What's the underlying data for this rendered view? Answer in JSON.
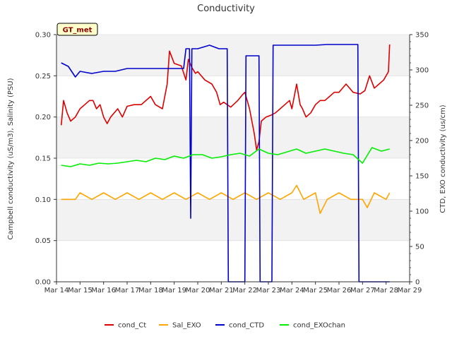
{
  "chart_data": {
    "type": "line",
    "title": "Conductivity",
    "badge": "GT_met",
    "ylabel": "Campbell conductivity (uS/m3), Salinity (PSU)",
    "y2label": "CTD, EXO conductivity (us/cm)",
    "ylim": [
      0,
      0.3
    ],
    "y2lim": [
      0,
      350
    ],
    "xlim": [
      14,
      29
    ],
    "grid": "horizontal bands",
    "legend_placement": "bottom-center",
    "x_ticks": [
      "Mar 14",
      "Mar 15",
      "Mar 16",
      "Mar 17",
      "Mar 18",
      "Mar 19",
      "Mar 20",
      "Mar 21",
      "Mar 22",
      "Mar 23",
      "Mar 24",
      "Mar 25",
      "Mar 26",
      "Mar 27",
      "Mar 28",
      "Mar 29"
    ],
    "y_ticks": [
      "0.00",
      "0.05",
      "0.10",
      "0.15",
      "0.20",
      "0.25",
      "0.30"
    ],
    "y2_ticks": [
      "0",
      "50",
      "100",
      "150",
      "200",
      "250",
      "300",
      "350"
    ],
    "series": [
      {
        "name": "cond_Ct",
        "color": "#dd0000",
        "axis": "left",
        "x": [
          14.2,
          14.3,
          14.45,
          14.6,
          14.8,
          15.0,
          15.2,
          15.4,
          15.55,
          15.7,
          15.85,
          16.0,
          16.15,
          16.3,
          16.6,
          16.8,
          17.0,
          17.3,
          17.6,
          18.0,
          18.2,
          18.5,
          18.7,
          18.8,
          19.0,
          19.3,
          19.5,
          19.6,
          19.75,
          19.9,
          20.0,
          20.3,
          20.6,
          20.8,
          20.95,
          21.1,
          21.4,
          21.7,
          21.9,
          22.0,
          22.2,
          22.4,
          22.5,
          22.6,
          22.7,
          22.9,
          23.1,
          23.3,
          23.5,
          23.7,
          23.9,
          24.0,
          24.2,
          24.35,
          24.45,
          24.6,
          24.8,
          25.0,
          25.2,
          25.4,
          25.6,
          25.8,
          26.0,
          26.3,
          26.6,
          26.9,
          27.1,
          27.3,
          27.5,
          27.7,
          27.9,
          28.0,
          28.1,
          28.15
        ],
        "y": [
          0.19,
          0.22,
          0.205,
          0.195,
          0.2,
          0.21,
          0.215,
          0.22,
          0.22,
          0.21,
          0.215,
          0.2,
          0.192,
          0.2,
          0.21,
          0.2,
          0.213,
          0.215,
          0.215,
          0.225,
          0.215,
          0.21,
          0.24,
          0.28,
          0.265,
          0.262,
          0.245,
          0.27,
          0.26,
          0.253,
          0.255,
          0.245,
          0.24,
          0.23,
          0.215,
          0.218,
          0.212,
          0.22,
          0.227,
          0.23,
          0.21,
          0.18,
          0.16,
          0.17,
          0.195,
          0.2,
          0.202,
          0.205,
          0.21,
          0.215,
          0.22,
          0.21,
          0.24,
          0.215,
          0.21,
          0.2,
          0.205,
          0.215,
          0.22,
          0.22,
          0.225,
          0.23,
          0.23,
          0.24,
          0.23,
          0.228,
          0.232,
          0.25,
          0.235,
          0.24,
          0.245,
          0.25,
          0.255,
          0.288
        ]
      },
      {
        "name": "Sal_EXO",
        "color": "#ffa500",
        "axis": "left",
        "x": [
          14.2,
          14.8,
          15.0,
          15.5,
          16.0,
          16.5,
          17.0,
          17.5,
          18.0,
          18.5,
          19.0,
          19.5,
          20.0,
          20.5,
          21.0,
          21.5,
          22.0,
          22.5,
          23.0,
          23.5,
          24.0,
          24.2,
          24.5,
          25.0,
          25.2,
          25.5,
          26.0,
          26.5,
          27.0,
          27.2,
          27.5,
          28.0,
          28.15
        ],
        "y": [
          0.1,
          0.1,
          0.108,
          0.1,
          0.108,
          0.1,
          0.108,
          0.1,
          0.108,
          0.1,
          0.108,
          0.1,
          0.108,
          0.1,
          0.108,
          0.1,
          0.108,
          0.1,
          0.108,
          0.1,
          0.108,
          0.117,
          0.1,
          0.108,
          0.083,
          0.1,
          0.108,
          0.1,
          0.1,
          0.09,
          0.108,
          0.1,
          0.108
        ]
      },
      {
        "name": "cond_CTD",
        "color": "#0000cc",
        "axis": "right",
        "x": [
          14.2,
          14.5,
          14.8,
          15.0,
          15.5,
          16.0,
          16.5,
          17.0,
          17.5,
          18.0,
          18.5,
          19.0,
          19.4,
          19.5,
          19.65,
          19.7,
          19.75,
          19.8,
          20.0,
          20.5,
          20.9,
          21.25,
          21.3,
          21.35,
          22.0,
          22.05,
          22.1,
          22.6,
          22.65,
          22.7,
          23.1,
          23.15,
          23.2,
          24.0,
          25.0,
          25.5,
          26.0,
          26.5,
          26.8,
          26.85,
          26.9,
          28.15
        ],
        "y": [
          310,
          305,
          290,
          298,
          295,
          298,
          298,
          302,
          302,
          302,
          302,
          302,
          302,
          330,
          330,
          90,
          330,
          330,
          330,
          335,
          330,
          330,
          0,
          0,
          0,
          320,
          320,
          320,
          0,
          0,
          0,
          0,
          335,
          335,
          335,
          336,
          336,
          336,
          336,
          0,
          0,
          0
        ]
      },
      {
        "name": "cond_EXOchan",
        "color": "#00ee00",
        "axis": "right",
        "x": [
          14.2,
          14.6,
          15.0,
          15.4,
          15.8,
          16.2,
          16.6,
          17.0,
          17.4,
          17.8,
          18.2,
          18.6,
          19.0,
          19.4,
          19.8,
          20.2,
          20.6,
          21.0,
          21.4,
          21.8,
          22.2,
          22.6,
          23.0,
          23.4,
          23.8,
          24.2,
          24.6,
          25.0,
          25.4,
          25.8,
          26.2,
          26.6,
          27.0,
          27.4,
          27.8,
          28.15
        ],
        "y": [
          165,
          163,
          167,
          165,
          168,
          167,
          168,
          170,
          172,
          170,
          175,
          173,
          178,
          175,
          180,
          180,
          175,
          177,
          180,
          182,
          178,
          188,
          182,
          180,
          184,
          188,
          182,
          185,
          188,
          185,
          182,
          180,
          168,
          190,
          185,
          188
        ]
      }
    ]
  }
}
